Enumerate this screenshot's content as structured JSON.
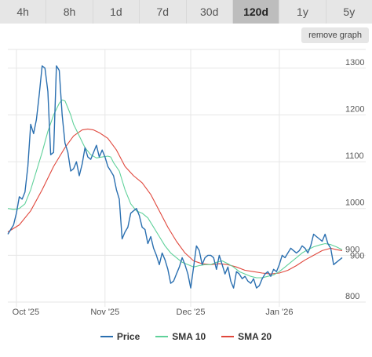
{
  "tabs": [
    {
      "label": "4h",
      "active": false
    },
    {
      "label": "8h",
      "active": false
    },
    {
      "label": "1d",
      "active": false
    },
    {
      "label": "7d",
      "active": false
    },
    {
      "label": "30d",
      "active": false
    },
    {
      "label": "120d",
      "active": true
    },
    {
      "label": "1y",
      "active": false
    },
    {
      "label": "5y",
      "active": false
    }
  ],
  "remove_graph_label": "remove graph",
  "colors": {
    "price": "#2a6fb0",
    "sma10": "#5fd19a",
    "sma20": "#e0473c",
    "grid": "#e6e6e6"
  },
  "chart_data": {
    "type": "line",
    "x_ticks": [
      "Oct '25",
      "Nov '25",
      "Dec '25",
      "Jan '26"
    ],
    "x_tick_days": [
      4,
      35,
      65,
      96
    ],
    "y_ticks": [
      "800",
      "900",
      "1000",
      "1100",
      "1200",
      "1300"
    ],
    "y_tick_values": [
      800,
      900,
      1000,
      1100,
      1200,
      1300
    ],
    "ylim": [
      800,
      1340
    ],
    "xlim": [
      1,
      118
    ],
    "x_unit": "day index (Oct 1, 2025 = 1)",
    "current_value": "900",
    "grid": true,
    "legend": "bottom",
    "series": [
      {
        "name": "Price",
        "color": "#2a6fb0",
        "points": [
          [
            1,
            945
          ],
          [
            2,
            955
          ],
          [
            3,
            965
          ],
          [
            4,
            990
          ],
          [
            5,
            1025
          ],
          [
            6,
            1020
          ],
          [
            7,
            1035
          ],
          [
            8,
            1090
          ],
          [
            9,
            1180
          ],
          [
            10,
            1160
          ],
          [
            11,
            1190
          ],
          [
            12,
            1245
          ],
          [
            13,
            1305
          ],
          [
            14,
            1300
          ],
          [
            15,
            1250
          ],
          [
            16,
            1115
          ],
          [
            17,
            1120
          ],
          [
            18,
            1305
          ],
          [
            19,
            1295
          ],
          [
            20,
            1200
          ],
          [
            21,
            1140
          ],
          [
            22,
            1120
          ],
          [
            23,
            1080
          ],
          [
            24,
            1085
          ],
          [
            25,
            1100
          ],
          [
            26,
            1070
          ],
          [
            27,
            1095
          ],
          [
            28,
            1130
          ],
          [
            29,
            1110
          ],
          [
            30,
            1105
          ],
          [
            31,
            1120
          ],
          [
            32,
            1135
          ],
          [
            33,
            1110
          ],
          [
            34,
            1125
          ],
          [
            35,
            1110
          ],
          [
            36,
            1090
          ],
          [
            37,
            1080
          ],
          [
            38,
            1070
          ],
          [
            39,
            1040
          ],
          [
            40,
            1020
          ],
          [
            41,
            935
          ],
          [
            42,
            950
          ],
          [
            43,
            960
          ],
          [
            44,
            990
          ],
          [
            45,
            995
          ],
          [
            46,
            1000
          ],
          [
            47,
            985
          ],
          [
            48,
            960
          ],
          [
            49,
            955
          ],
          [
            50,
            925
          ],
          [
            51,
            940
          ],
          [
            52,
            915
          ],
          [
            53,
            900
          ],
          [
            54,
            880
          ],
          [
            55,
            905
          ],
          [
            56,
            890
          ],
          [
            57,
            870
          ],
          [
            58,
            840
          ],
          [
            59,
            845
          ],
          [
            60,
            860
          ],
          [
            61,
            875
          ],
          [
            62,
            895
          ],
          [
            63,
            880
          ],
          [
            64,
            860
          ],
          [
            65,
            830
          ],
          [
            66,
            875
          ],
          [
            67,
            920
          ],
          [
            68,
            910
          ],
          [
            69,
            880
          ],
          [
            70,
            895
          ],
          [
            71,
            900
          ],
          [
            72,
            900
          ],
          [
            73,
            895
          ],
          [
            74,
            870
          ],
          [
            75,
            900
          ],
          [
            76,
            880
          ],
          [
            77,
            860
          ],
          [
            78,
            875
          ],
          [
            79,
            845
          ],
          [
            80,
            830
          ],
          [
            81,
            865
          ],
          [
            82,
            860
          ],
          [
            83,
            850
          ],
          [
            84,
            855
          ],
          [
            85,
            845
          ],
          [
            86,
            840
          ],
          [
            87,
            850
          ],
          [
            88,
            830
          ],
          [
            89,
            835
          ],
          [
            90,
            850
          ],
          [
            91,
            860
          ],
          [
            92,
            865
          ],
          [
            93,
            855
          ],
          [
            94,
            870
          ],
          [
            95,
            865
          ],
          [
            96,
            880
          ],
          [
            97,
            900
          ],
          [
            98,
            895
          ],
          [
            99,
            905
          ],
          [
            100,
            915
          ],
          [
            101,
            910
          ],
          [
            102,
            905
          ],
          [
            103,
            910
          ],
          [
            104,
            920
          ],
          [
            105,
            915
          ],
          [
            106,
            905
          ],
          [
            107,
            920
          ],
          [
            108,
            945
          ],
          [
            109,
            940
          ],
          [
            110,
            935
          ],
          [
            111,
            930
          ],
          [
            112,
            945
          ],
          [
            113,
            925
          ],
          [
            114,
            915
          ],
          [
            115,
            880
          ],
          [
            116,
            885
          ],
          [
            117,
            890
          ],
          [
            118,
            895
          ]
        ]
      },
      {
        "name": "SMA 10",
        "color": "#5fd19a",
        "points": [
          [
            1,
            1000
          ],
          [
            3,
            998
          ],
          [
            5,
            1000
          ],
          [
            7,
            1010
          ],
          [
            9,
            1040
          ],
          [
            11,
            1080
          ],
          [
            13,
            1120
          ],
          [
            15,
            1165
          ],
          [
            17,
            1200
          ],
          [
            19,
            1225
          ],
          [
            20,
            1232
          ],
          [
            21,
            1230
          ],
          [
            22,
            1215
          ],
          [
            23,
            1200
          ],
          [
            24,
            1180
          ],
          [
            26,
            1155
          ],
          [
            28,
            1130
          ],
          [
            30,
            1115
          ],
          [
            32,
            1108
          ],
          [
            34,
            1110
          ],
          [
            36,
            1112
          ],
          [
            37,
            1110
          ],
          [
            38,
            1098
          ],
          [
            40,
            1080
          ],
          [
            42,
            1040
          ],
          [
            44,
            1010
          ],
          [
            46,
            995
          ],
          [
            48,
            990
          ],
          [
            50,
            980
          ],
          [
            52,
            960
          ],
          [
            54,
            940
          ],
          [
            56,
            920
          ],
          [
            58,
            905
          ],
          [
            60,
            895
          ],
          [
            62,
            885
          ],
          [
            64,
            880
          ],
          [
            66,
            875
          ],
          [
            68,
            878
          ],
          [
            70,
            880
          ],
          [
            72,
            880
          ],
          [
            74,
            885
          ],
          [
            76,
            888
          ],
          [
            78,
            882
          ],
          [
            80,
            875
          ],
          [
            82,
            865
          ],
          [
            84,
            860
          ],
          [
            86,
            855
          ],
          [
            88,
            852
          ],
          [
            90,
            852
          ],
          [
            92,
            855
          ],
          [
            94,
            858
          ],
          [
            96,
            865
          ],
          [
            98,
            875
          ],
          [
            100,
            885
          ],
          [
            102,
            895
          ],
          [
            104,
            905
          ],
          [
            106,
            912
          ],
          [
            108,
            918
          ],
          [
            110,
            922
          ],
          [
            112,
            925
          ],
          [
            114,
            923
          ],
          [
            116,
            918
          ],
          [
            118,
            912
          ]
        ]
      },
      {
        "name": "SMA 20",
        "color": "#e0473c",
        "points": [
          [
            1,
            950
          ],
          [
            5,
            965
          ],
          [
            9,
            995
          ],
          [
            13,
            1040
          ],
          [
            17,
            1090
          ],
          [
            19,
            1110
          ],
          [
            21,
            1130
          ],
          [
            24,
            1155
          ],
          [
            27,
            1168
          ],
          [
            29,
            1170
          ],
          [
            31,
            1168
          ],
          [
            33,
            1162
          ],
          [
            36,
            1150
          ],
          [
            39,
            1125
          ],
          [
            42,
            1090
          ],
          [
            45,
            1070
          ],
          [
            48,
            1055
          ],
          [
            51,
            1030
          ],
          [
            54,
            995
          ],
          [
            57,
            960
          ],
          [
            60,
            930
          ],
          [
            63,
            905
          ],
          [
            66,
            888
          ],
          [
            69,
            882
          ],
          [
            72,
            880
          ],
          [
            75,
            882
          ],
          [
            78,
            880
          ],
          [
            81,
            875
          ],
          [
            84,
            868
          ],
          [
            87,
            865
          ],
          [
            90,
            862
          ],
          [
            93,
            860
          ],
          [
            96,
            862
          ],
          [
            99,
            868
          ],
          [
            102,
            878
          ],
          [
            105,
            890
          ],
          [
            108,
            900
          ],
          [
            111,
            910
          ],
          [
            114,
            915
          ],
          [
            116,
            912
          ],
          [
            118,
            910
          ]
        ]
      }
    ]
  }
}
